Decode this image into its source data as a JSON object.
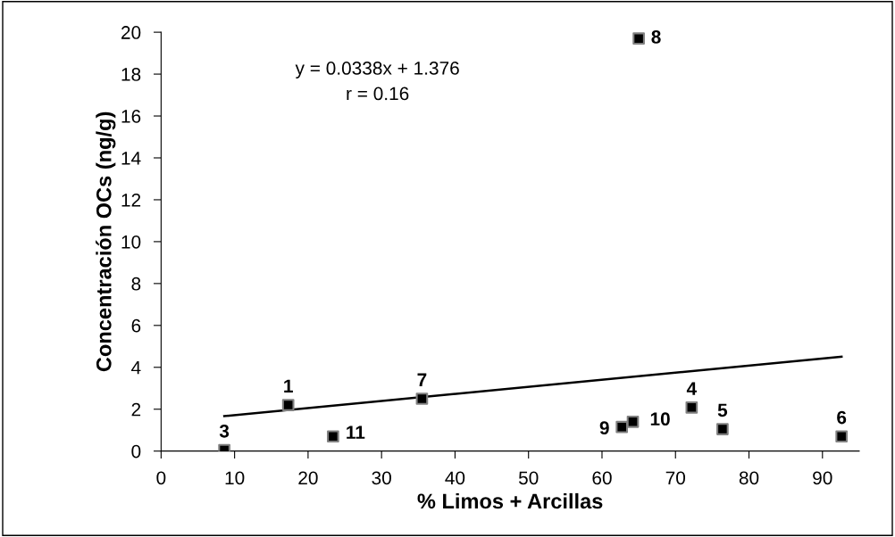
{
  "chart_data": {
    "type": "scatter",
    "xlabel": "% Limos + Arcillas",
    "ylabel": "Concentración OCs (ng/g)",
    "series": [
      {
        "color": "#000000",
        "marker": "square",
        "x": [
          17.3,
          8.6,
          72.2,
          76.4,
          92.6,
          35.5,
          65.0,
          62.7,
          64.2,
          23.4
        ],
        "values": [
          2.2,
          0.05,
          2.08,
          1.05,
          0.7,
          2.5,
          19.7,
          1.15,
          1.4,
          0.7
        ]
      },
      {
        "type": "line",
        "color": "#000000",
        "marker": "none",
        "line_style": "solid",
        "x": [
          8.6,
          92.6
        ],
        "values": [
          1.67,
          4.51
        ]
      }
    ],
    "annotations": [
      {
        "text": "1",
        "x": 17.3,
        "y": 2.2
      },
      {
        "text": "3",
        "x": 8.6,
        "y": 0.05
      },
      {
        "text": "4",
        "x": 72.2,
        "y": 2.08
      },
      {
        "text": "5",
        "x": 76.4,
        "y": 1.05
      },
      {
        "text": "6",
        "x": 92.6,
        "y": 0.7
      },
      {
        "text": "7",
        "x": 35.5,
        "y": 2.5
      },
      {
        "text": "8",
        "x": 65.0,
        "y": 19.7
      },
      {
        "text": "9",
        "x": 62.7,
        "y": 1.15
      },
      {
        "text": "10",
        "x": 64.2,
        "y": 1.4
      },
      {
        "text": "11",
        "x": 23.4,
        "y": 0.7
      },
      "y = 0.0338x + 1.376\nr = 0.16"
    ],
    "xlim": [
      0,
      95
    ],
    "ylim": [
      0,
      20
    ],
    "xticks": [
      0,
      10,
      20,
      30,
      40,
      50,
      60,
      70,
      80,
      90
    ],
    "yticks": [
      0,
      2,
      4,
      6,
      8,
      10,
      12,
      14,
      16,
      18,
      20
    ],
    "grid": false,
    "legend": false
  }
}
